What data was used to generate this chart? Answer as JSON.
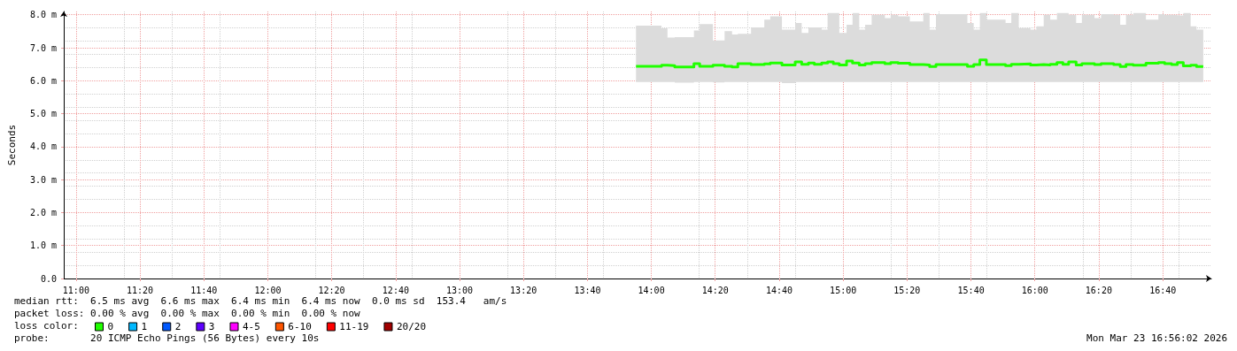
{
  "chart_data": {
    "type": "step",
    "ylabel": "Seconds",
    "legend_title": "loss color:",
    "legend": "bottom left",
    "grid": true,
    "marker": "none",
    "xlim": [
      10.936,
      16.92
    ],
    "xticks": [
      {
        "value": 11,
        "label": "11:00"
      },
      {
        "value": 11.333,
        "label": "11:20"
      },
      {
        "value": 11.667,
        "label": "11:40"
      },
      {
        "value": 12,
        "label": "12:00"
      },
      {
        "value": 12.333,
        "label": "12:20"
      },
      {
        "value": 12.667,
        "label": "12:40"
      },
      {
        "value": 13,
        "label": "13:00"
      },
      {
        "value": 13.333,
        "label": "13:20"
      },
      {
        "value": 13.667,
        "label": "13:40"
      },
      {
        "value": 14,
        "label": "14:00"
      },
      {
        "value": 14.333,
        "label": "14:20"
      },
      {
        "value": 14.667,
        "label": "14:40"
      },
      {
        "value": 15,
        "label": "15:00"
      },
      {
        "value": 15.333,
        "label": "15:20"
      },
      {
        "value": 15.667,
        "label": "15:40"
      },
      {
        "value": 16,
        "label": "16:00"
      },
      {
        "value": 16.333,
        "label": "16:20"
      },
      {
        "value": 16.667,
        "label": "16:40"
      }
    ],
    "ylim": [
      0,
      8.1
    ],
    "yticks": [
      {
        "value": 0,
        "label": "0.0"
      },
      {
        "value": 1,
        "label": "1.0 m"
      },
      {
        "value": 2,
        "label": "2.0 m"
      },
      {
        "value": 3,
        "label": "3.0 m"
      },
      {
        "value": 4,
        "label": "4.0 m"
      },
      {
        "value": 5,
        "label": "5.0 m"
      },
      {
        "value": 6,
        "label": "6.0 m"
      },
      {
        "value": 7,
        "label": "7.0 m"
      },
      {
        "value": 8,
        "label": "8.0 m"
      }
    ],
    "series": [
      {
        "name": "0",
        "color": "#20ff00",
        "x": [
          13.92,
          14.053,
          14.084,
          14.122,
          14.222,
          14.252,
          14.321,
          14.382,
          14.421,
          14.451,
          14.52,
          14.589,
          14.62,
          14.681,
          14.75,
          14.784,
          14.819,
          14.85,
          14.888,
          14.919,
          14.949,
          14.98,
          15.018,
          15.049,
          15.084,
          15.115,
          15.149,
          15.218,
          15.248,
          15.287,
          15.348,
          15.418,
          15.451,
          15.484,
          15.648,
          15.681,
          15.713,
          15.747,
          15.847,
          15.877,
          15.916,
          15.977,
          16.008,
          16.046,
          16.08,
          16.115,
          16.146,
          16.176,
          16.215,
          16.245,
          16.311,
          16.345,
          16.411,
          16.445,
          16.475,
          16.513,
          16.579,
          16.644,
          16.677,
          16.713,
          16.743,
          16.774,
          16.812,
          16.843,
          16.878
        ],
        "values": [
          6.44,
          6.47,
          6.46,
          6.42,
          6.52,
          6.44,
          6.47,
          6.44,
          6.42,
          6.52,
          6.49,
          6.51,
          6.54,
          6.48,
          6.57,
          6.5,
          6.54,
          6.5,
          6.54,
          6.57,
          6.52,
          6.48,
          6.6,
          6.54,
          6.48,
          6.52,
          6.55,
          6.52,
          6.55,
          6.53,
          6.49,
          6.48,
          6.43,
          6.49,
          6.44,
          6.49,
          6.63,
          6.49,
          6.46,
          6.5,
          6.51,
          6.48,
          6.49,
          6.48,
          6.5,
          6.55,
          6.5,
          6.57,
          6.48,
          6.52,
          6.49,
          6.52,
          6.49,
          6.43,
          6.49,
          6.47,
          6.53,
          6.55,
          6.52,
          6.49,
          6.55,
          6.45,
          6.47,
          6.43,
          6.43
        ],
        "lower": [
          5.96,
          5.96,
          5.96,
          5.94,
          5.96,
          5.96,
          5.95,
          5.96,
          5.96,
          5.96,
          5.96,
          5.96,
          5.96,
          5.93,
          5.96,
          5.96,
          5.96,
          5.96,
          5.96,
          5.96,
          5.96,
          5.96,
          5.96,
          5.96,
          5.96,
          5.96,
          5.96,
          5.96,
          5.96,
          5.96,
          5.96,
          5.96,
          5.96,
          5.96,
          5.96,
          5.96,
          5.96,
          5.96,
          5.96,
          5.96,
          5.96,
          5.96,
          5.96,
          5.96,
          5.96,
          5.96,
          5.96,
          5.96,
          5.96,
          5.96,
          5.96,
          5.96,
          5.96,
          5.96,
          5.96,
          5.96,
          5.96,
          5.96,
          5.96,
          5.96,
          5.96,
          5.96,
          5.96,
          5.96,
          5.96
        ],
        "upper": [
          7.67,
          7.59,
          7.31,
          7.32,
          7.52,
          7.72,
          7.22,
          7.5,
          7.4,
          7.42,
          7.62,
          7.85,
          7.95,
          7.55,
          7.75,
          7.45,
          7.62,
          7.62,
          7.55,
          8.05,
          8.05,
          7.45,
          7.7,
          8.05,
          7.55,
          7.7,
          8.0,
          7.9,
          8.0,
          7.95,
          7.8,
          8.05,
          7.55,
          8.02,
          7.75,
          7.55,
          8.05,
          7.85,
          7.75,
          8.05,
          7.6,
          7.55,
          7.65,
          8.0,
          7.85,
          8.05,
          8.05,
          8.0,
          7.75,
          8.0,
          7.9,
          8.02,
          8.0,
          7.7,
          8.0,
          8.05,
          7.85,
          8.02,
          8.0,
          8.0,
          7.98,
          8.05,
          7.65,
          7.55,
          7.55
        ]
      },
      {
        "name": "1",
        "color": "#00b8ff"
      },
      {
        "name": "2",
        "color": "#0059ff"
      },
      {
        "name": "3",
        "color": "#5e00ff"
      },
      {
        "name": "4-5",
        "color": "#ff00ff"
      },
      {
        "name": "6-10",
        "color": "#ff5500"
      },
      {
        "name": "11-19",
        "color": "#ff0000"
      },
      {
        "name": "20/20",
        "color": "#a10000"
      }
    ],
    "annotations": [
      "median rtt:  6.5 ms avg  6.6 ms max  6.4 ms min  6.4 ms now  0.0 ms sd  153.4   am/s",
      "packet loss: 0.00 % avg  0.00 % max  0.00 % min  0.00 % now",
      "probe:       20 ICMP Echo Pings (56 Bytes) every 10s",
      "Mon Mar 23 16:56:02 2026"
    ]
  }
}
